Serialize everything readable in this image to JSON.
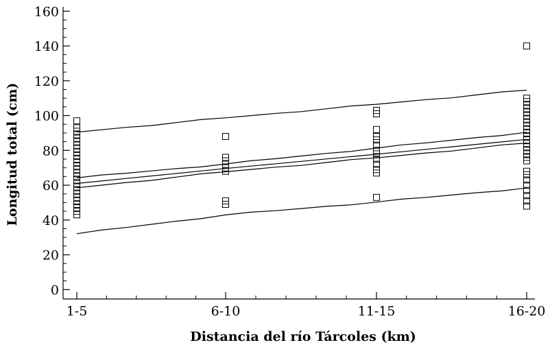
{
  "chart_data": {
    "type": "scatter",
    "xlabel": "Distancia del río Tárcoles (km)",
    "ylabel": "Longitud total (cm)",
    "categories": [
      "1-5",
      "6-10",
      "11-15",
      "16-20"
    ],
    "ylim": [
      0,
      160
    ],
    "y_major_ticks": [
      0,
      20,
      40,
      60,
      80,
      100,
      120,
      140,
      160
    ],
    "y_minor_step": 5,
    "x_minor_ticks_per_interval": 4,
    "grid": false,
    "legend": "none",
    "point_marker": "open-square",
    "points": [
      {
        "x": "1-5",
        "y": [
          43,
          45,
          47,
          49,
          51,
          53,
          55,
          57,
          59,
          61,
          63,
          65,
          67,
          69,
          71,
          73,
          75,
          77,
          79,
          81,
          83,
          85,
          87,
          89,
          91,
          93,
          97
        ]
      },
      {
        "x": "6-10",
        "y": [
          49,
          51,
          68,
          70,
          72,
          74,
          76,
          88
        ]
      },
      {
        "x": "11-15",
        "y": [
          53,
          67,
          69,
          72,
          75,
          78,
          80,
          83,
          86,
          88,
          92,
          101,
          103
        ]
      },
      {
        "x": "16-20",
        "y": [
          48,
          51,
          54,
          57,
          60,
          63,
          66,
          68,
          74,
          76,
          78,
          80,
          82,
          84,
          86,
          88,
          90,
          92,
          94,
          96,
          98,
          100,
          102,
          104,
          106,
          108,
          110,
          140
        ]
      }
    ],
    "lines": [
      {
        "x": [
          "1-5",
          "6-10",
          "11-15",
          "16-20"
        ],
        "y": [
          90.5,
          98.7,
          106.5,
          114.6
        ]
      },
      {
        "x": [
          "1-5",
          "6-10",
          "11-15",
          "16-20"
        ],
        "y": [
          64.2,
          72.2,
          81.3,
          90.4
        ]
      },
      {
        "x": [
          "1-5",
          "6-10",
          "11-15",
          "16-20"
        ],
        "y": [
          61.0,
          69.6,
          77.8,
          86.3
        ]
      },
      {
        "x": [
          "1-5",
          "6-10",
          "11-15",
          "16-20"
        ],
        "y": [
          58.5,
          67.7,
          75.7,
          84.2
        ]
      },
      {
        "x": [
          "1-5",
          "6-10",
          "11-15",
          "16-20"
        ],
        "y": [
          32.1,
          42.9,
          50.3,
          58.4
        ]
      }
    ]
  }
}
